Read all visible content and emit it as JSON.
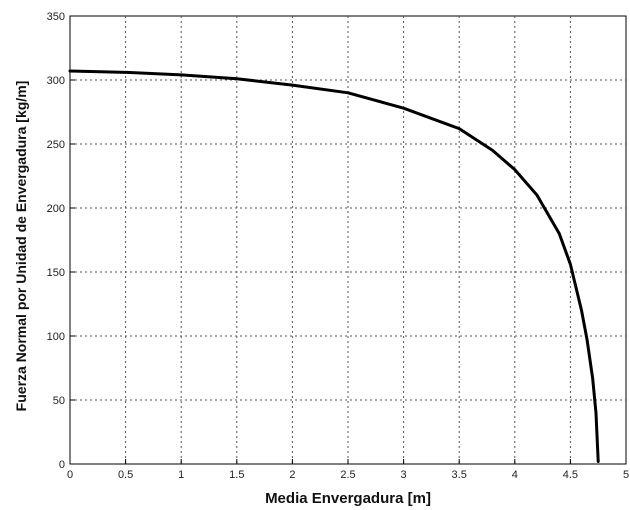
{
  "chart_data": {
    "type": "line",
    "xlabel": "Media Envergadura [m]",
    "ylabel": "Fuerza Normal por Unidad de Envergadura [kg/m]",
    "xlim": [
      0,
      5
    ],
    "ylim": [
      0,
      350
    ],
    "grid": true,
    "xticks": [
      "0",
      "0.5",
      "1",
      "1.5",
      "2",
      "2.5",
      "3",
      "3.5",
      "4",
      "4.5",
      "5"
    ],
    "yticks": [
      "0",
      "50",
      "100",
      "150",
      "200",
      "250",
      "300",
      "350"
    ],
    "series": [
      {
        "x": [
          0,
          0.5,
          1.0,
          1.5,
          2.0,
          2.5,
          3.0,
          3.5,
          3.8,
          4.0,
          4.2,
          4.4,
          4.5,
          4.6,
          4.65,
          4.7,
          4.73,
          4.75
        ],
        "y": [
          307,
          306,
          304,
          301,
          296,
          290,
          278,
          262,
          245,
          230,
          210,
          180,
          156,
          120,
          97,
          67,
          40,
          2
        ],
        "color": "#000000"
      }
    ]
  }
}
